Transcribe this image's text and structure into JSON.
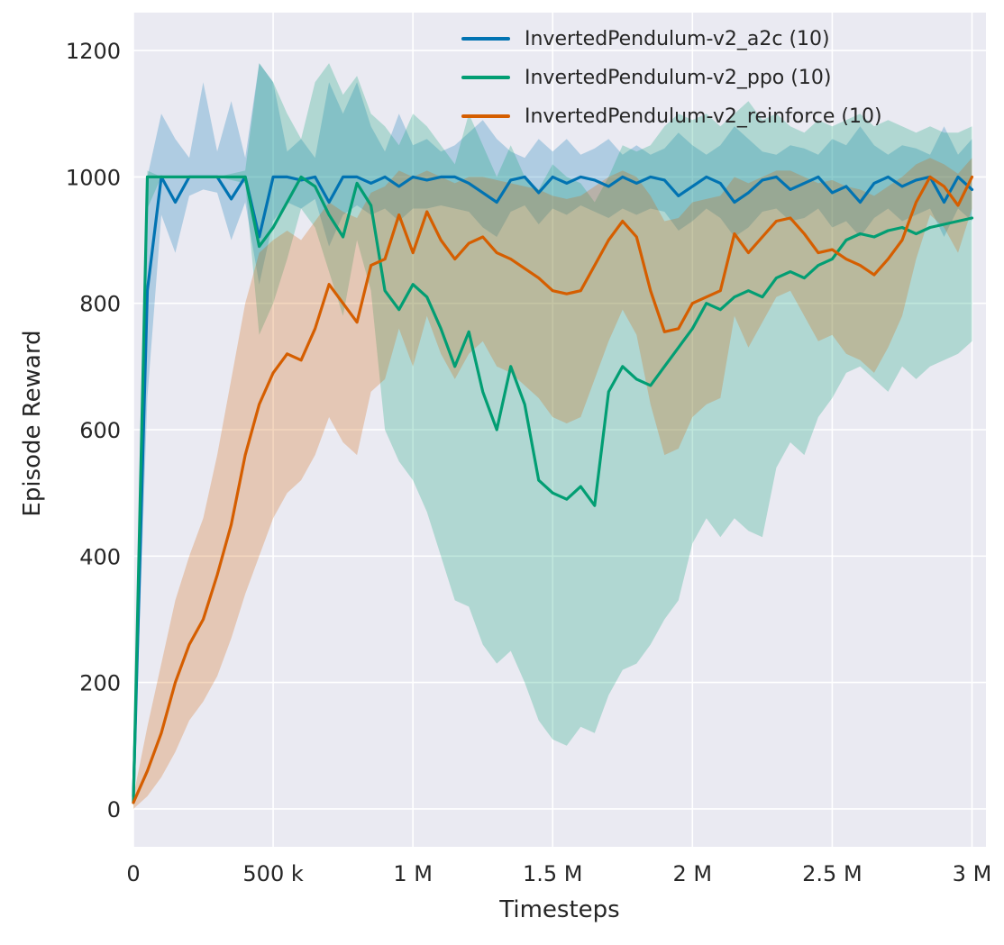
{
  "figure": {
    "background": "#ffffff",
    "plot_background": "#eaeaf2",
    "grid_color": "#ffffff",
    "text_color": "#262626"
  },
  "chart_data": {
    "type": "line",
    "title": "",
    "xlabel": "Timesteps",
    "ylabel": "Episode Reward",
    "grid": true,
    "legend_position": "upper center",
    "xlim": [
      0,
      3050000
    ],
    "ylim": [
      -60,
      1260
    ],
    "band_opacity": 0.25,
    "line_width": 3.2,
    "x_ticks": [
      {
        "value": 0,
        "label": "0"
      },
      {
        "value": 500000,
        "label": "500 k"
      },
      {
        "value": 1000000,
        "label": "1 M"
      },
      {
        "value": 1500000,
        "label": "1.5 M"
      },
      {
        "value": 2000000,
        "label": "2 M"
      },
      {
        "value": 2500000,
        "label": "2.5 M"
      },
      {
        "value": 3000000,
        "label": "3 M"
      }
    ],
    "y_ticks": [
      {
        "value": 0,
        "label": "0"
      },
      {
        "value": 200,
        "label": "200"
      },
      {
        "value": 400,
        "label": "400"
      },
      {
        "value": 600,
        "label": "600"
      },
      {
        "value": 800,
        "label": "800"
      },
      {
        "value": 1000,
        "label": "1000"
      },
      {
        "value": 1200,
        "label": "1200"
      }
    ],
    "x": [
      0,
      50000,
      100000,
      150000,
      200000,
      250000,
      300000,
      350000,
      400000,
      450000,
      500000,
      550000,
      600000,
      650000,
      700000,
      750000,
      800000,
      850000,
      900000,
      950000,
      1000000,
      1050000,
      1100000,
      1150000,
      1200000,
      1250000,
      1300000,
      1350000,
      1400000,
      1450000,
      1500000,
      1550000,
      1600000,
      1650000,
      1700000,
      1750000,
      1800000,
      1850000,
      1900000,
      1950000,
      2000000,
      2050000,
      2100000,
      2150000,
      2200000,
      2250000,
      2300000,
      2350000,
      2400000,
      2450000,
      2500000,
      2550000,
      2600000,
      2650000,
      2700000,
      2750000,
      2800000,
      2850000,
      2900000,
      2950000,
      3000000
    ],
    "series": [
      {
        "id": "a2c",
        "name": "InvertedPendulum-v2_a2c (10)",
        "color": "#0173b2",
        "mean": [
          20,
          820,
          1000,
          960,
          1000,
          1000,
          1000,
          965,
          1000,
          905,
          1000,
          1000,
          995,
          1000,
          960,
          1000,
          1000,
          990,
          1000,
          985,
          1000,
          995,
          1000,
          1000,
          990,
          975,
          960,
          995,
          1000,
          975,
          1000,
          990,
          1000,
          995,
          985,
          1000,
          990,
          1000,
          995,
          970,
          985,
          1000,
          990,
          960,
          975,
          995,
          1000,
          980,
          990,
          1000,
          975,
          985,
          960,
          990,
          1000,
          985,
          995,
          1000,
          960,
          1000,
          980
        ],
        "low": [
          0,
          650,
          940,
          880,
          970,
          980,
          975,
          900,
          960,
          830,
          930,
          960,
          950,
          965,
          890,
          940,
          955,
          940,
          950,
          930,
          950,
          950,
          955,
          950,
          945,
          920,
          905,
          945,
          955,
          925,
          950,
          940,
          955,
          945,
          935,
          950,
          940,
          950,
          945,
          915,
          930,
          950,
          935,
          905,
          920,
          945,
          950,
          930,
          935,
          950,
          920,
          930,
          905,
          935,
          950,
          930,
          940,
          950,
          905,
          950,
          930
        ],
        "high": [
          60,
          1000,
          1100,
          1060,
          1030,
          1150,
          1040,
          1120,
          1030,
          1180,
          1150,
          1040,
          1060,
          1030,
          1150,
          1100,
          1150,
          1080,
          1040,
          1100,
          1050,
          1060,
          1040,
          1050,
          1070,
          1090,
          1060,
          1040,
          1030,
          1060,
          1040,
          1060,
          1035,
          1045,
          1060,
          1035,
          1050,
          1035,
          1045,
          1070,
          1050,
          1035,
          1050,
          1080,
          1060,
          1040,
          1035,
          1050,
          1045,
          1035,
          1060,
          1050,
          1080,
          1050,
          1035,
          1050,
          1045,
          1035,
          1080,
          1035,
          1060
        ]
      },
      {
        "id": "ppo",
        "name": "InvertedPendulum-v2_ppo (10)",
        "color": "#029e73",
        "mean": [
          10,
          1000,
          1000,
          1000,
          1000,
          1000,
          1000,
          1000,
          1000,
          890,
          920,
          960,
          1000,
          985,
          940,
          905,
          990,
          955,
          820,
          790,
          830,
          810,
          760,
          700,
          755,
          660,
          600,
          700,
          640,
          520,
          500,
          490,
          510,
          480,
          660,
          700,
          680,
          670,
          700,
          730,
          760,
          800,
          790,
          810,
          820,
          810,
          840,
          850,
          840,
          860,
          870,
          900,
          910,
          905,
          915,
          920,
          910,
          920,
          925,
          930,
          935
        ],
        "low": [
          0,
          950,
          1000,
          1000,
          1000,
          1000,
          1000,
          995,
          990,
          750,
          800,
          870,
          950,
          920,
          850,
          780,
          900,
          820,
          600,
          550,
          520,
          470,
          400,
          330,
          320,
          260,
          230,
          250,
          200,
          140,
          110,
          100,
          130,
          120,
          180,
          220,
          230,
          260,
          300,
          330,
          420,
          460,
          430,
          460,
          440,
          430,
          540,
          580,
          560,
          620,
          650,
          690,
          700,
          680,
          660,
          700,
          680,
          700,
          710,
          720,
          740
        ],
        "high": [
          30,
          1010,
          1000,
          1000,
          1000,
          1000,
          1000,
          1005,
          1010,
          1180,
          1150,
          1100,
          1060,
          1150,
          1180,
          1130,
          1160,
          1100,
          1080,
          1050,
          1100,
          1080,
          1050,
          1020,
          1100,
          1050,
          1000,
          1050,
          1000,
          980,
          1020,
          1000,
          990,
          960,
          1000,
          1050,
          1040,
          1050,
          1080,
          1100,
          1090,
          1100,
          1080,
          1100,
          1120,
          1090,
          1100,
          1080,
          1070,
          1090,
          1080,
          1090,
          1100,
          1080,
          1090,
          1080,
          1070,
          1080,
          1070,
          1070,
          1080
        ]
      },
      {
        "id": "reinforce",
        "name": "InvertedPendulum-v2_reinforce (10)",
        "color": "#d55e00",
        "mean": [
          10,
          60,
          120,
          200,
          260,
          300,
          370,
          450,
          560,
          640,
          690,
          720,
          710,
          760,
          830,
          800,
          770,
          860,
          870,
          940,
          880,
          945,
          900,
          870,
          895,
          905,
          880,
          870,
          855,
          840,
          820,
          815,
          820,
          860,
          900,
          930,
          905,
          820,
          755,
          760,
          800,
          810,
          820,
          910,
          880,
          905,
          930,
          935,
          910,
          880,
          885,
          870,
          860,
          845,
          870,
          900,
          960,
          1000,
          985,
          955,
          1000
        ],
        "low": [
          0,
          20,
          50,
          90,
          140,
          170,
          210,
          270,
          340,
          400,
          460,
          500,
          520,
          560,
          620,
          580,
          560,
          660,
          680,
          760,
          700,
          780,
          720,
          680,
          720,
          740,
          700,
          690,
          670,
          650,
          620,
          610,
          620,
          680,
          740,
          790,
          750,
          640,
          560,
          570,
          620,
          640,
          650,
          780,
          730,
          770,
          810,
          820,
          780,
          740,
          750,
          720,
          710,
          690,
          730,
          780,
          870,
          940,
          920,
          880,
          950
        ],
        "high": [
          20,
          130,
          230,
          330,
          400,
          460,
          560,
          680,
          800,
          880,
          900,
          915,
          900,
          930,
          960,
          945,
          935,
          975,
          985,
          1010,
          1000,
          1010,
          1000,
          990,
          1000,
          1000,
          995,
          990,
          985,
          980,
          970,
          965,
          970,
          985,
          1000,
          1010,
          1000,
          970,
          930,
          935,
          960,
          965,
          970,
          1000,
          990,
          1000,
          1010,
          1010,
          1000,
          990,
          995,
          985,
          980,
          970,
          985,
          1000,
          1020,
          1030,
          1020,
          1005,
          1030
        ]
      }
    ]
  }
}
